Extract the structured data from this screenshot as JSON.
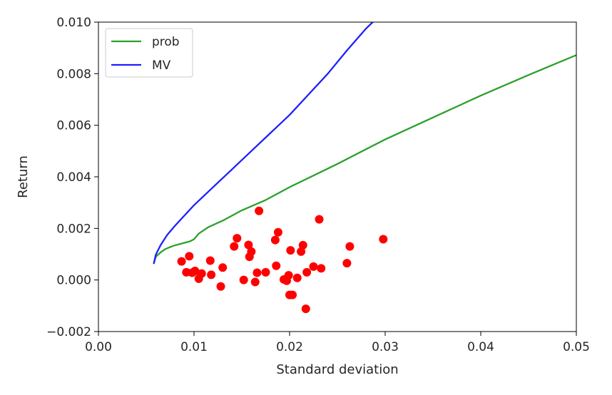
{
  "chart_data": {
    "type": "line",
    "xlabel": "Standard deviation",
    "ylabel": "Return",
    "xlim": [
      0.0,
      0.05
    ],
    "ylim": [
      -0.002,
      0.01
    ],
    "x_ticks": [
      0.0,
      0.01,
      0.02,
      0.03,
      0.04,
      0.05
    ],
    "x_tick_labels": [
      "0.00",
      "0.01",
      "0.02",
      "0.03",
      "0.04",
      "0.05"
    ],
    "y_ticks": [
      -0.002,
      0.0,
      0.002,
      0.004,
      0.006,
      0.008,
      0.01
    ],
    "y_tick_labels": [
      "−0.002",
      "0.000",
      "0.002",
      "0.004",
      "0.006",
      "0.008",
      "0.010"
    ],
    "grid": false,
    "legend_position": "top-left",
    "series": [
      {
        "name": "prob",
        "color": "#2ca02c",
        "kind": "line",
        "points": [
          [
            0.0058,
            0.00065
          ],
          [
            0.006,
            0.0009
          ],
          [
            0.0065,
            0.00107
          ],
          [
            0.007,
            0.0012
          ],
          [
            0.0078,
            0.00132
          ],
          [
            0.0087,
            0.00141
          ],
          [
            0.0096,
            0.0015
          ],
          [
            0.01,
            0.00158
          ],
          [
            0.0105,
            0.0018
          ],
          [
            0.0115,
            0.00205
          ],
          [
            0.013,
            0.0023
          ],
          [
            0.015,
            0.0027
          ],
          [
            0.0175,
            0.0031
          ],
          [
            0.02,
            0.0036
          ],
          [
            0.025,
            0.0045
          ],
          [
            0.03,
            0.00545
          ],
          [
            0.035,
            0.0063
          ],
          [
            0.04,
            0.00715
          ],
          [
            0.045,
            0.00795
          ],
          [
            0.05,
            0.00872
          ]
        ]
      },
      {
        "name": "MV",
        "color": "#1f1fff",
        "kind": "line",
        "points": [
          [
            0.0058,
            0.00065
          ],
          [
            0.006,
            0.00098
          ],
          [
            0.0065,
            0.00135
          ],
          [
            0.0072,
            0.00175
          ],
          [
            0.008,
            0.0021
          ],
          [
            0.009,
            0.0025
          ],
          [
            0.01,
            0.0029
          ],
          [
            0.012,
            0.0036
          ],
          [
            0.014,
            0.0043
          ],
          [
            0.016,
            0.005
          ],
          [
            0.018,
            0.0057
          ],
          [
            0.02,
            0.0064
          ],
          [
            0.022,
            0.0072
          ],
          [
            0.024,
            0.008
          ],
          [
            0.026,
            0.0089
          ],
          [
            0.028,
            0.00975
          ],
          [
            0.0287,
            0.01
          ]
        ]
      },
      {
        "name": "",
        "color": "#ff0000",
        "kind": "scatter",
        "points": [
          [
            0.0087,
            0.00072
          ],
          [
            0.0092,
            0.0003
          ],
          [
            0.0095,
            0.00092
          ],
          [
            0.0098,
            0.00028
          ],
          [
            0.0101,
            0.00035
          ],
          [
            0.0105,
            5e-05
          ],
          [
            0.0108,
            0.00025
          ],
          [
            0.0117,
            0.00075
          ],
          [
            0.0118,
            0.0002
          ],
          [
            0.0128,
            -0.00025
          ],
          [
            0.013,
            0.00048
          ],
          [
            0.0142,
            0.0013
          ],
          [
            0.0145,
            0.00162
          ],
          [
            0.0152,
            0.0
          ],
          [
            0.0157,
            0.00136
          ],
          [
            0.0158,
            0.0009
          ],
          [
            0.016,
            0.0011
          ],
          [
            0.0164,
            -8e-05
          ],
          [
            0.0166,
            0.00028
          ],
          [
            0.0168,
            0.00268
          ],
          [
            0.0175,
            0.0003
          ],
          [
            0.0185,
            0.00155
          ],
          [
            0.0186,
            0.00055
          ],
          [
            0.0188,
            0.00185
          ],
          [
            0.0194,
            2e-05
          ],
          [
            0.0197,
            -3e-05
          ],
          [
            0.0199,
            0.00018
          ],
          [
            0.02,
            -0.00058
          ],
          [
            0.0201,
            0.00115
          ],
          [
            0.0203,
            -0.00058
          ],
          [
            0.0208,
            8e-05
          ],
          [
            0.0212,
            0.0011
          ],
          [
            0.0214,
            0.00135
          ],
          [
            0.0217,
            -0.00112
          ],
          [
            0.0218,
            0.0003
          ],
          [
            0.0225,
            0.00052
          ],
          [
            0.0231,
            0.00235
          ],
          [
            0.0233,
            0.00045
          ],
          [
            0.026,
            0.00065
          ],
          [
            0.0263,
            0.0013
          ],
          [
            0.0298,
            0.00158
          ]
        ]
      }
    ]
  }
}
